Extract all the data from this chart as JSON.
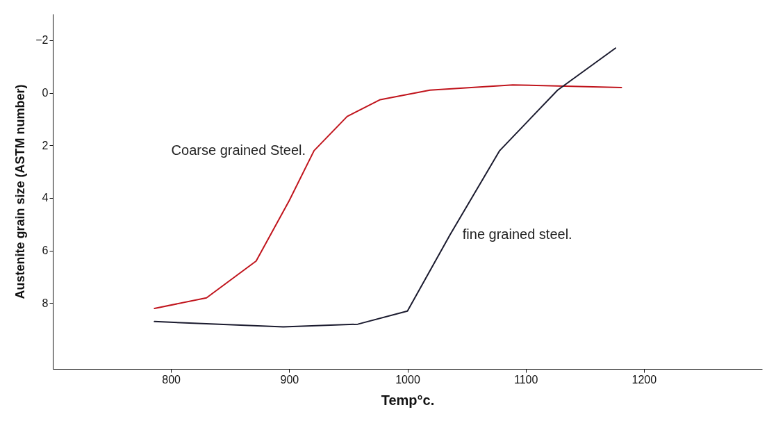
{
  "chart_data": {
    "type": "line",
    "xlabel": "Temp°c.",
    "ylabel": "Austenite grain size (ASTM number)",
    "xlim": [
      700,
      1300
    ],
    "ylim": [
      10.5,
      -3
    ],
    "xticks": [
      800,
      900,
      1000,
      1100,
      1200
    ],
    "yticks": [
      -2,
      0,
      2,
      4,
      6,
      8
    ],
    "grid": false,
    "legend": false,
    "series": [
      {
        "name": "Coarse grained Steel.",
        "color": "#c0141c",
        "x": [
          786,
          830,
          872,
          900,
          921,
          949,
          977,
          1019,
          1089,
          1181
        ],
        "values": [
          8.2,
          7.8,
          6.4,
          4.1,
          2.2,
          0.9,
          0.26,
          -0.1,
          -0.3,
          -0.2
        ]
      },
      {
        "name": "fine grained steel.",
        "color": "#1a1a2e",
        "x": [
          786,
          895,
          958,
          1000,
          1036,
          1078,
          1127,
          1176
        ],
        "values": [
          8.7,
          8.9,
          8.8,
          8.3,
          5.4,
          2.2,
          -0.1,
          -1.7
        ]
      }
    ]
  }
}
